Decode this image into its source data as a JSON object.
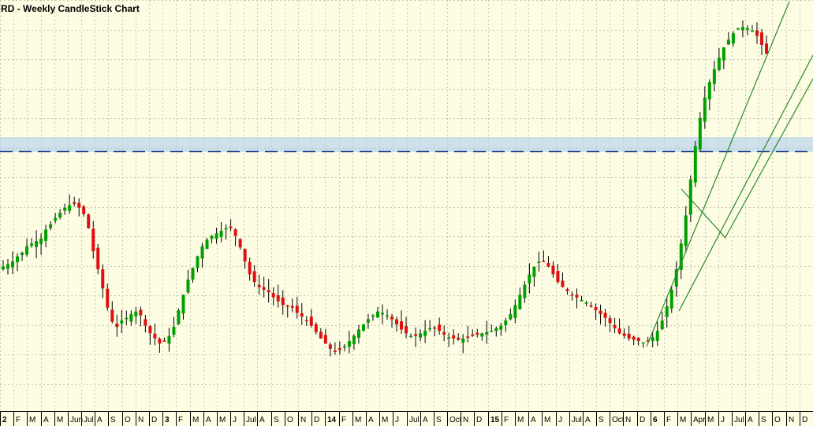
{
  "title": "RD - Weekly CandleStick Chart",
  "chart_data": {
    "type": "candlestick",
    "title": "RD - Weekly CandleStick Chart",
    "ylim": [
      0,
      100
    ],
    "grid": true,
    "colors": {
      "background": "#fdfde3",
      "up": "#00a000",
      "down": "#e01010",
      "wick": "#000000",
      "grid": "#c8c8b4",
      "zone": "#a8c8f0",
      "channel": "#2a8a2a",
      "level": "#1a3a8a"
    },
    "support_zone": [
      79.5,
      83
    ],
    "level": 81,
    "x_ticks": [
      "2",
      "F",
      "M",
      "A",
      "M",
      "Jun",
      "Jul",
      "A",
      "S",
      "O",
      "N",
      "D",
      "3",
      "F",
      "M",
      "A",
      "M",
      "J",
      "Jul",
      "A",
      "S",
      "O",
      "N",
      "D",
      "14",
      "F",
      "M",
      "A",
      "M",
      "J",
      "Jul",
      "A",
      "S",
      "Oct",
      "N",
      "D",
      "15",
      "F",
      "M",
      "A",
      "M",
      "J",
      "Jul",
      "A",
      "S",
      "Oct",
      "N",
      "D",
      "6",
      "F",
      "M",
      "Apr",
      "M",
      "J",
      "Jul",
      "A",
      "S",
      "O",
      "N",
      "D"
    ],
    "x_tick_bold": [
      "2",
      "3",
      "14",
      "15",
      "6"
    ],
    "closes": [
      82,
      84,
      86,
      90,
      93,
      98,
      100,
      102,
      104,
      111,
      115,
      120,
      124,
      128,
      130,
      131,
      128,
      123,
      112,
      94,
      80,
      65,
      50,
      39,
      35,
      40,
      42,
      45,
      47,
      44,
      36,
      30,
      26,
      22,
      24,
      28,
      35,
      48,
      60,
      72,
      81,
      90,
      98,
      103,
      106,
      108,
      110,
      112,
      112,
      106,
      97,
      86,
      76,
      70,
      66,
      64,
      62,
      58,
      55,
      52,
      51,
      50,
      46,
      43,
      40,
      36,
      31,
      26,
      22,
      18,
      16,
      17,
      20,
      24,
      28,
      33,
      37,
      41,
      44,
      47,
      46,
      44,
      41,
      37,
      33,
      30,
      28,
      28,
      30,
      32,
      34,
      34,
      32,
      29,
      27,
      26,
      25,
      26,
      27,
      28,
      29,
      30,
      31,
      32,
      34,
      36,
      40,
      45,
      52,
      60,
      68,
      76,
      82,
      86,
      86,
      82,
      76,
      70,
      66,
      63,
      60,
      58,
      56,
      54,
      51,
      48,
      45,
      42,
      38,
      34,
      30,
      28,
      26,
      25,
      24,
      23,
      24,
      27,
      32,
      40,
      51,
      64,
      80,
      100,
      122,
      150,
      176,
      198,
      214,
      226,
      236,
      245,
      253,
      259,
      264,
      268,
      269,
      268,
      266,
      262,
      255,
      248
    ],
    "ohlc_scale": {
      "price_min": -30,
      "price_max": 290
    }
  }
}
